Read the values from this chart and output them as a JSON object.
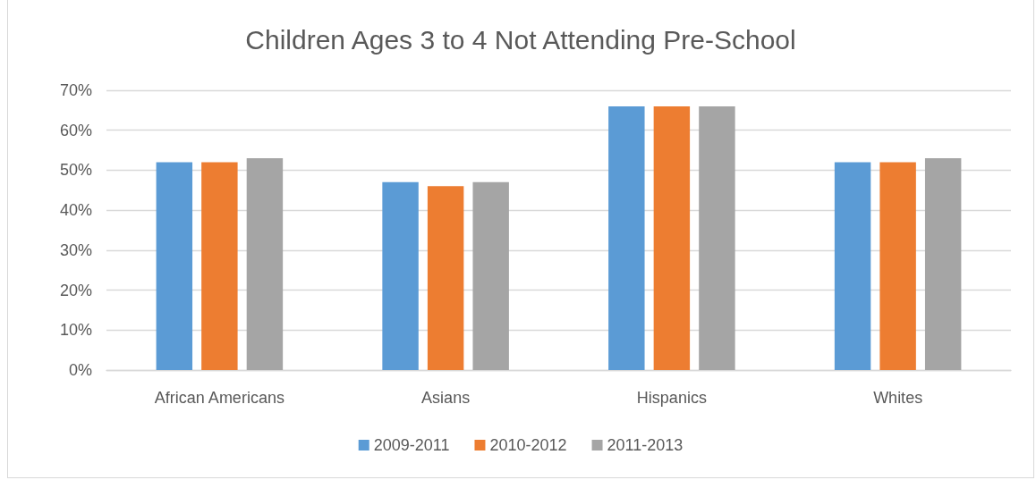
{
  "chart_data": {
    "type": "bar",
    "title": "Children Ages 3 to 4 Not Attending Pre-School",
    "categories": [
      "African Americans",
      "Asians",
      "Hispanics",
      "Whites"
    ],
    "series": [
      {
        "name": "2009-2011",
        "color": "#5b9bd5",
        "values": [
          52,
          47,
          66,
          52
        ]
      },
      {
        "name": "2010-2012",
        "color": "#ed7d31",
        "values": [
          52,
          46,
          66,
          52
        ]
      },
      {
        "name": "2011-2013",
        "color": "#a5a5a5",
        "values": [
          53,
          47,
          66,
          53
        ]
      }
    ],
    "ylim": [
      0,
      70
    ],
    "yticks": [
      {
        "value": 0,
        "label": "0%"
      },
      {
        "value": 10,
        "label": "10%"
      },
      {
        "value": 20,
        "label": "20%"
      },
      {
        "value": 30,
        "label": "30%"
      },
      {
        "value": 40,
        "label": "40%"
      },
      {
        "value": 50,
        "label": "50%"
      },
      {
        "value": 60,
        "label": "60%"
      },
      {
        "value": 70,
        "label": "70%"
      }
    ],
    "grid": "y",
    "legend": "bottom"
  }
}
